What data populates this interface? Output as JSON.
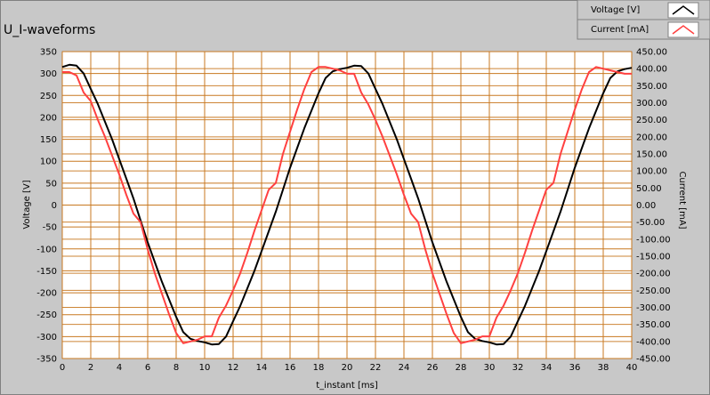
{
  "chart_data": {
    "type": "line",
    "title": "U_I-waveforms",
    "xlabel": "t_instant [ms]",
    "ylabel": "Voltage [V]",
    "y2label": "Current [mA]",
    "xlim": [
      0,
      40
    ],
    "ylim": [
      -350,
      350
    ],
    "y2lim": [
      -450,
      450
    ],
    "x_ticks": [
      "0",
      "2",
      "4",
      "6",
      "8",
      "10",
      "12",
      "14",
      "16",
      "18",
      "20",
      "22",
      "24",
      "26",
      "28",
      "30",
      "32",
      "34",
      "36",
      "38",
      "40"
    ],
    "y_ticks": [
      "350",
      "300",
      "250",
      "200",
      "150",
      "100",
      "50",
      "0",
      "-50",
      "-100",
      "-150",
      "-200",
      "-250",
      "-300",
      "-350"
    ],
    "y2_ticks": [
      "450.00",
      "400.00",
      "350.00",
      "300.00",
      "250.00",
      "200.00",
      "150.00",
      "100.00",
      "50.00",
      "0.00",
      "-50.00",
      "-100.00",
      "-150.00",
      "-200.00",
      "-250.00",
      "-300.00",
      "-350.00",
      "-400.00",
      "-450.00"
    ],
    "grid": true,
    "legend_position": "top-right",
    "colors": {
      "background": "#c8c8c8",
      "plot_area": "#ffffff",
      "grid": "#c87820",
      "voltage": "#000000",
      "current": "#ff4040"
    },
    "series": [
      {
        "name": "Voltage [V]",
        "axis": "left",
        "color": "#000000",
        "x": [
          0.0,
          0.5,
          1.0,
          1.5,
          2.0,
          2.5,
          3.0,
          3.5,
          4.0,
          4.5,
          5.0,
          5.5,
          6.0,
          6.5,
          7.0,
          7.5,
          8.0,
          8.5,
          9.0,
          9.5,
          10.0,
          10.5,
          11.0,
          11.5,
          12.0,
          12.5,
          13.0,
          13.5,
          14.0,
          14.5,
          15.0,
          15.5,
          16.0,
          16.5,
          17.0,
          17.5,
          18.0,
          18.5,
          19.0,
          19.5,
          20.0,
          20.5,
          21.0,
          21.5,
          22.0,
          22.5,
          23.0,
          23.5,
          24.0,
          24.5,
          25.0,
          25.5,
          26.0,
          26.5,
          27.0,
          27.5,
          28.0,
          28.5,
          29.0,
          29.5,
          30.0,
          30.5,
          31.0,
          31.5,
          32.0,
          32.5,
          33.0,
          33.5,
          34.0,
          34.5,
          35.0,
          35.5,
          36.0,
          36.5,
          37.0,
          37.5,
          38.0,
          38.5,
          39.0,
          39.5,
          40.0
        ],
        "values": [
          315,
          320,
          318,
          300,
          265,
          230,
          190,
          150,
          105,
          60,
          15,
          -35,
          -85,
          -130,
          -175,
          -215,
          -255,
          -290,
          -305,
          -310,
          -313,
          -318,
          -317,
          -300,
          -265,
          -230,
          -190,
          -150,
          -105,
          -60,
          -15,
          35,
          85,
          130,
          175,
          215,
          255,
          290,
          305,
          310,
          313,
          318,
          317,
          300,
          265,
          230,
          190,
          150,
          105,
          60,
          15,
          -35,
          -85,
          -130,
          -175,
          -215,
          -255,
          -290,
          -305,
          -310,
          -313,
          -318,
          -317,
          -300,
          -265,
          -230,
          -190,
          -150,
          -105,
          -60,
          -15,
          35,
          85,
          130,
          175,
          215,
          255,
          290,
          305,
          310,
          313
        ]
      },
      {
        "name": "Current [mA]",
        "axis": "right",
        "color": "#ff4040",
        "x": [
          0.0,
          0.5,
          1.0,
          1.5,
          2.0,
          2.5,
          3.0,
          3.5,
          4.0,
          4.5,
          5.0,
          5.5,
          6.0,
          6.5,
          7.0,
          7.5,
          8.0,
          8.5,
          9.0,
          9.5,
          10.0,
          10.5,
          11.0,
          11.5,
          12.0,
          12.5,
          13.0,
          13.5,
          14.0,
          14.5,
          15.0,
          15.5,
          16.0,
          16.5,
          17.0,
          17.5,
          18.0,
          18.5,
          19.0,
          19.5,
          20.0,
          20.5,
          21.0,
          21.5,
          22.0,
          22.5,
          23.0,
          23.5,
          24.0,
          24.5,
          25.0,
          25.5,
          26.0,
          26.5,
          27.0,
          27.5,
          28.0,
          28.5,
          29.0,
          29.5,
          30.0,
          30.5,
          31.0,
          31.5,
          32.0,
          32.5,
          33.0,
          33.5,
          34.0,
          34.5,
          35.0,
          35.5,
          36.0,
          36.5,
          37.0,
          37.5,
          38.0,
          38.5,
          39.0,
          39.5,
          40.0
        ],
        "values": [
          390,
          390,
          380,
          330,
          305,
          250,
          200,
          145,
          90,
          30,
          -25,
          -50,
          -130,
          -200,
          -260,
          -320,
          -375,
          -405,
          -400,
          -395,
          -385,
          -385,
          -330,
          -295,
          -250,
          -200,
          -140,
          -75,
          -15,
          45,
          65,
          150,
          215,
          280,
          340,
          390,
          405,
          405,
          400,
          395,
          385,
          385,
          330,
          295,
          250,
          200,
          145,
          90,
          30,
          -25,
          -50,
          -130,
          -200,
          -260,
          -320,
          -375,
          -405,
          -400,
          -395,
          -385,
          -385,
          -330,
          -295,
          -250,
          -200,
          -140,
          -75,
          -15,
          45,
          65,
          150,
          215,
          280,
          340,
          390,
          405,
          400,
          395,
          390,
          385,
          385
        ]
      }
    ]
  }
}
